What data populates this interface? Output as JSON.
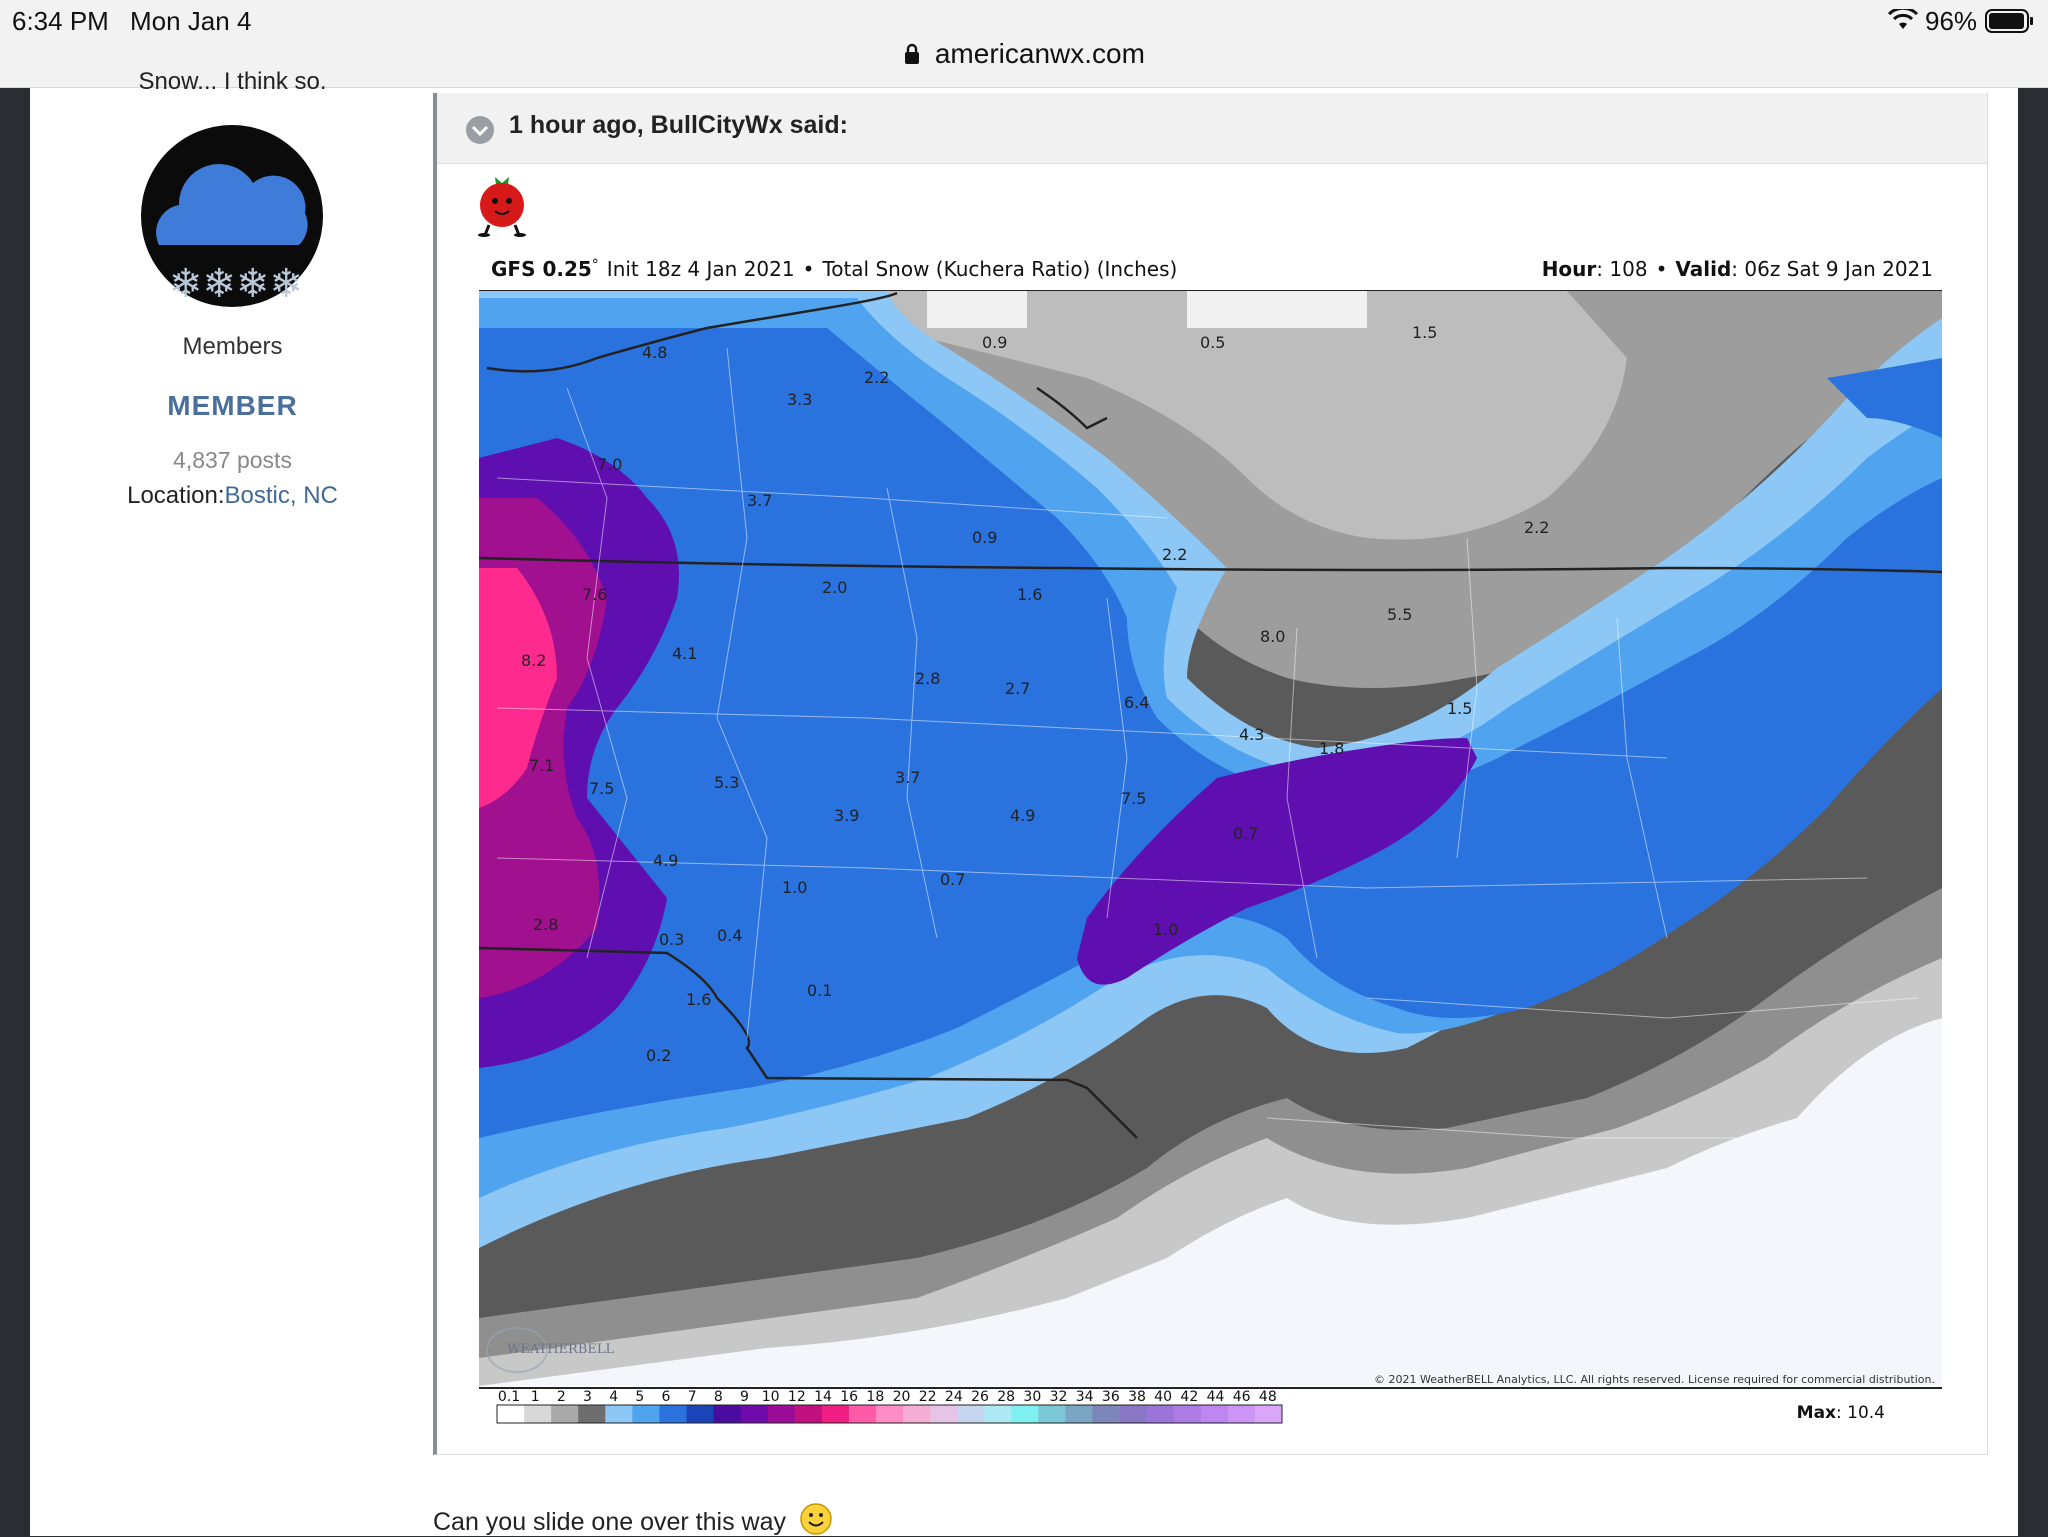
{
  "status_bar": {
    "time": "6:34 PM",
    "date": "Mon Jan 4",
    "url": "americanwx.com",
    "battery": "96%"
  },
  "author": {
    "prev_text": "Snow... I think so.",
    "group": "Members",
    "rank": "MEMBER",
    "posts": "4,837 posts",
    "location_label": "Location:",
    "location_value": "Bostic, NC"
  },
  "quote": {
    "header": "1 hour ago, BullCityWx said:"
  },
  "map": {
    "model": "GFS 0.25",
    "degree": "°",
    "init": "Init 18z 4 Jan 2021",
    "sep": "•",
    "product": "Total Snow (Kuchera Ratio) (Inches)",
    "hour_label": "Hour",
    "hour_value": ": 108",
    "valid_label": "Valid",
    "valid_value": ": 06z Sat 9 Jan 2021",
    "copyright": "© 2021 WeatherBELL Analytics, LLC. All rights reserved. License required for commercial distribution.",
    "logo": "WEATHERBELL",
    "max_label": "Max",
    "max_value": ": 10.4",
    "scale_labels": [
      "0.1",
      "1",
      "2",
      "3",
      "4",
      "5",
      "6",
      "7",
      "8",
      "9",
      "10",
      "12",
      "14",
      "16",
      "18",
      "20",
      "22",
      "24",
      "26",
      "28",
      "30",
      "32",
      "34",
      "36",
      "38",
      "40",
      "42",
      "44",
      "46",
      "48"
    ],
    "value_labels": [
      "4.8",
      "3.3",
      "2.2",
      "0.9",
      "0.5",
      "1.5",
      "7.0",
      "3.7",
      "0.9",
      "2.2",
      "7.6",
      "2.0",
      "1.6",
      "5.5",
      "8.2",
      "4.1",
      "8.0",
      "2.8",
      "2.7",
      "6.4",
      "1.5",
      "4.3",
      "1.8",
      "7.1",
      "7.5",
      "5.3",
      "3.7",
      "7.5",
      "3.9",
      "4.9",
      "0.7",
      "4.9",
      "1.0",
      "0.7",
      "2.8",
      "0.4",
      "1.0",
      "0.3",
      "0.1",
      "1.6",
      "0.2",
      "2.2"
    ]
  },
  "reply_text": "Can you slide one over this way",
  "colors": {
    "accent_link": "#3d6a96",
    "rank_blue": "#4a6f9c",
    "avatar_cloud": "#3f7bd8"
  }
}
